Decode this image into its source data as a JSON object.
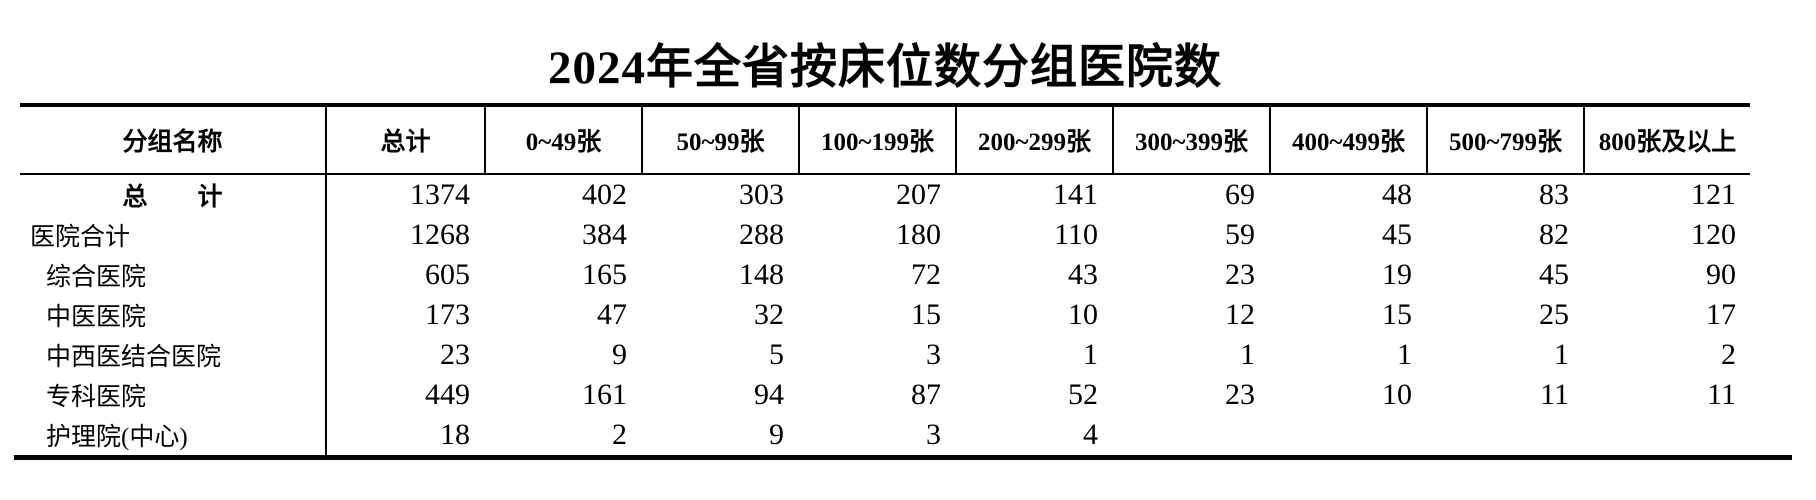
{
  "title": "2024年全省按床位数分组医院数",
  "table": {
    "columns": [
      "分组名称",
      "总计",
      "0~49张",
      "50~99张",
      "100~199张",
      "200~299张",
      "300~399张",
      "400~499张",
      "500~799张",
      "800张及以上"
    ],
    "rows": [
      {
        "label": "总　　计",
        "values": [
          "1374",
          "402",
          "303",
          "207",
          "141",
          "69",
          "48",
          "83",
          "121"
        ]
      },
      {
        "label": "医院合计",
        "values": [
          "1268",
          "384",
          "288",
          "180",
          "110",
          "59",
          "45",
          "82",
          "120"
        ]
      },
      {
        "label": "综合医院",
        "values": [
          "605",
          "165",
          "148",
          "72",
          "43",
          "23",
          "19",
          "45",
          "90"
        ]
      },
      {
        "label": "中医医院",
        "values": [
          "173",
          "47",
          "32",
          "15",
          "10",
          "12",
          "15",
          "25",
          "17"
        ]
      },
      {
        "label": "中西医结合医院",
        "values": [
          "23",
          "9",
          "5",
          "3",
          "1",
          "1",
          "1",
          "1",
          "2"
        ]
      },
      {
        "label": "专科医院",
        "values": [
          "449",
          "161",
          "94",
          "87",
          "52",
          "23",
          "10",
          "11",
          "11"
        ]
      },
      {
        "label": "护理院(中心)",
        "values": [
          "18",
          "2",
          "9",
          "3",
          "4",
          "",
          "",
          "",
          ""
        ]
      }
    ]
  }
}
